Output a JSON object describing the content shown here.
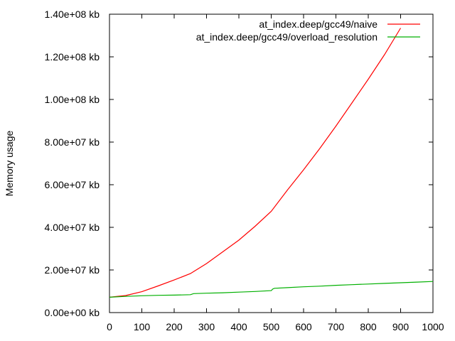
{
  "chart_data": {
    "type": "line",
    "title": "",
    "xlabel": "",
    "ylabel": "Memory usage",
    "xlim": [
      0,
      1000
    ],
    "ylim": [
      0,
      140000000
    ],
    "x_ticks": [
      0,
      100,
      200,
      300,
      400,
      500,
      600,
      700,
      800,
      900,
      1000
    ],
    "x_tick_labels": [
      "0",
      "100",
      "200",
      "300",
      "400",
      "500",
      "600",
      "700",
      "800",
      "900",
      "1000"
    ],
    "y_ticks": [
      0,
      20000000,
      40000000,
      60000000,
      80000000,
      100000000,
      120000000,
      140000000
    ],
    "y_tick_labels": [
      "0.00e+00 kb",
      "2.00e+07 kb",
      "4.00e+07 kb",
      "6.00e+07 kb",
      "8.00e+07 kb",
      "1.00e+08 kb",
      "1.20e+08 kb",
      "1.40e+08 kb"
    ],
    "grid": false,
    "legend_position": "top-right",
    "series": [
      {
        "name": "at_index.deep/gcc49/naive",
        "color": "#ff0000",
        "x": [
          0,
          50,
          100,
          150,
          200,
          250,
          300,
          350,
          400,
          450,
          500,
          550,
          600,
          650,
          700,
          750,
          800,
          850,
          900
        ],
        "y": [
          7200000,
          8000000,
          9800000,
          12500000,
          15300000,
          18300000,
          23000000,
          28500000,
          34000000,
          40500000,
          47500000,
          57500000,
          67000000,
          77000000,
          87500000,
          98500000,
          109500000,
          121000000,
          133500000
        ]
      },
      {
        "name": "at_index.deep/gcc49/overload_resolution",
        "color": "#00b000",
        "x": [
          0,
          50,
          100,
          150,
          200,
          250,
          260,
          300,
          350,
          400,
          450,
          500,
          505,
          510,
          550,
          600,
          650,
          700,
          750,
          800,
          850,
          900,
          950,
          1000
        ],
        "y": [
          7200000,
          7600000,
          7900000,
          8100000,
          8200000,
          8400000,
          8900000,
          9100000,
          9300000,
          9600000,
          9900000,
          10300000,
          11100000,
          11400000,
          11700000,
          12100000,
          12400000,
          12800000,
          13100000,
          13400000,
          13700000,
          14000000,
          14300000,
          14600000
        ]
      }
    ]
  }
}
